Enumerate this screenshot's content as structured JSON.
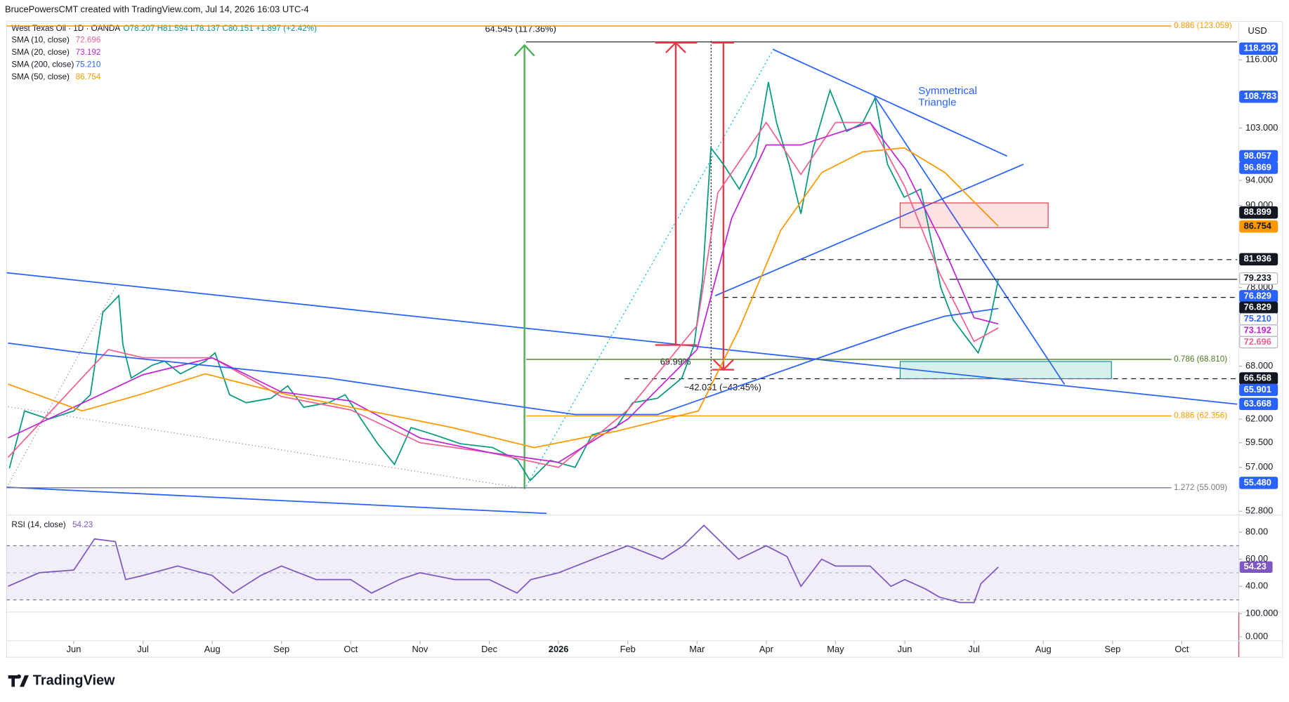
{
  "header": {
    "credit": "BrucePowersCMT created with TradingView.com, Jul 14, 2026 16:03 UTC-4",
    "currency": "USD",
    "logo": "TradingView"
  },
  "chart_data": [
    {
      "type": "line",
      "legend": {
        "symbol": "West Texas Oil · 1D · OANDA",
        "ohlc": "O78.207 H81.594 L78.137 C80.151 +1.897 (+2.42%)"
      },
      "xlim": [
        -0.97,
        16.8
      ],
      "xticks": [
        {
          "value": 0,
          "label": "Jun"
        },
        {
          "value": 1,
          "label": "Jul"
        },
        {
          "value": 2,
          "label": "Aug"
        },
        {
          "value": 3,
          "label": "Sep"
        },
        {
          "value": 4,
          "label": "Oct"
        },
        {
          "value": 5,
          "label": "Nov"
        },
        {
          "value": 6,
          "label": "Dec"
        },
        {
          "value": 7,
          "label": "2026"
        },
        {
          "value": 8,
          "label": "Feb"
        },
        {
          "value": 9,
          "label": "Mar"
        },
        {
          "value": 10,
          "label": "Apr"
        },
        {
          "value": 11,
          "label": "May"
        },
        {
          "value": 12,
          "label": "Jun"
        },
        {
          "value": 13,
          "label": "Jul"
        },
        {
          "value": 14,
          "label": "Aug"
        },
        {
          "value": 15,
          "label": "Sep"
        },
        {
          "value": 16,
          "label": "Oct"
        }
      ],
      "ylim": [
        52.6,
        123.7
      ],
      "log_scale": true,
      "grid": false,
      "yticks": [
        {
          "value": 116,
          "label": "116.000"
        },
        {
          "value": 103,
          "label": "103.000"
        },
        {
          "value": 94,
          "label": "94.000"
        },
        {
          "value": 90,
          "label": "90.000"
        },
        {
          "value": 78,
          "label": "78.000"
        },
        {
          "value": 68,
          "label": "68.000"
        },
        {
          "value": 62,
          "label": "62.000"
        },
        {
          "value": 59.5,
          "label": "59.500"
        },
        {
          "value": 57,
          "label": "57.000"
        },
        {
          "value": 52.8,
          "label": "52.800"
        }
      ],
      "series": [
        {
          "color": "#089981",
          "x": [
            -0.93,
            -0.71,
            -0.36,
            0,
            0.24,
            0.42,
            0.65,
            0.71,
            0.83,
            1.13,
            1.31,
            1.54,
            1.9,
            2.04,
            2.25,
            2.49,
            2.85,
            3.09,
            3.32,
            3.68,
            3.92,
            4.15,
            4.39,
            4.63,
            4.87,
            5.22,
            5.58,
            6.05,
            6.41,
            6.59,
            6.88,
            7.24,
            7.48,
            7.83,
            8.07,
            8.43,
            8.78,
            8.96,
            9.08,
            9.2,
            9.38,
            9.61,
            9.85,
            10.03,
            10.15,
            10.33,
            10.5,
            10.68,
            10.92,
            11.16,
            11.39,
            11.57,
            11.75,
            11.99,
            12.23,
            12.4,
            12.52,
            12.7,
            12.88,
            13.06,
            13.23,
            13.35
          ],
          "values": [
            56.9,
            62.9,
            62.0,
            62.9,
            64.7,
            74.7,
            76.9,
            70.6,
            66.6,
            68.1,
            68.6,
            67.1,
            68.6,
            69.6,
            64.7,
            63.8,
            64.3,
            65.7,
            63.3,
            63.8,
            64.7,
            62.0,
            59.4,
            57.3,
            61.1,
            60.3,
            59.4,
            59.0,
            57.7,
            55.7,
            57.7,
            57.0,
            60.3,
            61.1,
            63.8,
            64.3,
            66.6,
            70.6,
            79.1,
            99.5,
            96.7,
            92.6,
            98.1,
            111.6,
            103.9,
            96.7,
            88.7,
            99.5,
            110.0,
            102.4,
            103.9,
            108.5,
            96.7,
            91.3,
            92.6,
            83.8,
            78.0,
            73.7,
            71.6,
            69.6,
            73.7,
            79.1
          ]
        },
        {
          "name": "SMA (10, close)",
          "last_label": "72.696",
          "color": "#f06292",
          "x": [
            -0.95,
            0.5,
            1,
            2,
            3,
            4,
            5,
            6,
            7,
            8,
            9,
            9.3,
            10,
            10.5,
            11,
            11.5,
            12,
            12.5,
            13,
            13.35
          ],
          "values": [
            58,
            70,
            69,
            69,
            64.5,
            63,
            59.5,
            58.5,
            57,
            63,
            73,
            92,
            104,
            95,
            104,
            104,
            93,
            80,
            71,
            72.7
          ]
        },
        {
          "name": "SMA (20, close)",
          "last_label": "73.192",
          "color": "#c026d3",
          "x": [
            -0.95,
            1,
            2,
            3,
            4,
            5,
            6,
            7,
            8,
            9,
            9.5,
            10,
            10.5,
            11,
            11.5,
            12,
            12.5,
            13,
            13.35
          ],
          "values": [
            60,
            67,
            69,
            65,
            64,
            60,
            58.5,
            57.5,
            62,
            70,
            88,
            100,
            100,
            102,
            104,
            96,
            85,
            74,
            73.2
          ]
        },
        {
          "name": "SMA (200, close)",
          "last_label": "75.210",
          "color": "#2962ff",
          "x": [
            -0.95,
            0.12,
            1.31,
            2.49,
            3.68,
            4.87,
            6.05,
            7.24,
            8.43,
            9.61,
            10.8,
            11.99,
            12.58,
            13.35
          ],
          "values": [
            70.8,
            69.6,
            68.6,
            67.6,
            66.6,
            65.2,
            63.8,
            62.5,
            62.5,
            65.7,
            69.1,
            72.6,
            74.2,
            75.2
          ]
        },
        {
          "name": "SMA (50, close)",
          "last_label": "86.754",
          "color": "#ff9800",
          "x": [
            -0.95,
            0.12,
            0.95,
            1.9,
            3.09,
            4.27,
            5.46,
            6.65,
            7.83,
            9.02,
            9.61,
            10.21,
            10.8,
            11.39,
            11.99,
            12.58,
            13.35
          ],
          "values": [
            65.9,
            62.9,
            64.7,
            67.1,
            64.7,
            62.9,
            61.1,
            59.0,
            60.7,
            62.9,
            72.6,
            86.2,
            95.3,
            98.8,
            99.5,
            95.3,
            86.8
          ]
        }
      ],
      "levels": [
        {
          "value": 123.059,
          "label": "0.886 (123.059)",
          "color": "#ff9800"
        },
        {
          "value": 68.81,
          "label": "0.786 (68.810)",
          "color": "#4c7a1e"
        },
        {
          "value": 62.356,
          "label": "0.886 (62.356)",
          "color": "#ff9800"
        },
        {
          "value": 55.009,
          "label": "1.272 (55.009)",
          "color": "#787b86"
        }
      ],
      "price_labels": [
        {
          "value": 118.292,
          "label": "118.292",
          "color": "#2962ff",
          "text_color": "#ffffff"
        },
        {
          "value": 108.783,
          "label": "108.783",
          "color": "#2962ff",
          "text_color": "#ffffff"
        },
        {
          "value": 98.057,
          "label": "98.057",
          "color": "#2962ff",
          "text_color": "#ffffff"
        },
        {
          "value": 96.869,
          "label": "96.869",
          "color": "#2962ff",
          "text_color": "#ffffff"
        },
        {
          "value": 88.899,
          "label": "88.899",
          "color": "#131722",
          "text_color": "#ffffff"
        },
        {
          "value": 86.754,
          "label": "86.754",
          "color": "#ff9800",
          "text_color": "#131722"
        },
        {
          "value": 81.936,
          "label": "81.936",
          "color": "#131722",
          "text_color": "#ffffff"
        },
        {
          "value": 79.233,
          "label": "79.233",
          "color": "#ffffff",
          "text_color": "#131722"
        },
        {
          "value": 76.829,
          "label": "76.829",
          "color": "#2962ff",
          "text_color": "#ffffff"
        },
        {
          "value": 76.829,
          "label": "76.829",
          "color": "#131722",
          "text_color": "#ffffff"
        },
        {
          "value": 75.21,
          "label": "75.210",
          "color": "#ffffff",
          "text_color": "#2962ff"
        },
        {
          "value": 73.192,
          "label": "73.192",
          "color": "#ffffff",
          "text_color": "#c026d3"
        },
        {
          "value": 72.696,
          "label": "72.696",
          "color": "#ffffff",
          "text_color": "#f06292"
        },
        {
          "value": 66.568,
          "label": "66.568",
          "color": "#131722",
          "text_color": "#ffffff"
        },
        {
          "value": 65.901,
          "label": "65.901",
          "color": "#2962ff",
          "text_color": "#ffffff"
        },
        {
          "value": 63.668,
          "label": "63.668",
          "color": "#2962ff",
          "text_color": "#ffffff"
        },
        {
          "value": 55.48,
          "label": "55.480",
          "color": "#2962ff",
          "text_color": "#ffffff"
        }
      ],
      "annotations": {
        "gain": "64.545 (117.36%)",
        "retrace": "69.99%",
        "drop": "−42.031 (−43.45%)",
        "pattern": [
          "Symmetrical",
          "Triangle"
        ]
      }
    },
    {
      "type": "line",
      "xlim": [
        -0.97,
        16.8
      ],
      "ylim": [
        21,
        92
      ],
      "band": [
        30,
        70
      ],
      "midline": 50,
      "yticks": [
        {
          "value": 80,
          "label": "80.00"
        },
        {
          "value": 60,
          "label": "60.00"
        },
        {
          "value": 40,
          "label": "40.00"
        }
      ],
      "series": [
        {
          "name": "RSI (14, close)",
          "last_label": "54.23",
          "color": "#7e57c2",
          "x": [
            -0.95,
            -0.5,
            0,
            0.3,
            0.6,
            0.75,
            1,
            1.5,
            2,
            2.3,
            2.7,
            3,
            3.5,
            4,
            4.3,
            4.7,
            5,
            5.5,
            6,
            6.4,
            6.6,
            7,
            7.5,
            8,
            8.5,
            8.8,
            9.1,
            9.3,
            9.6,
            10,
            10.3,
            10.5,
            10.8,
            11,
            11.5,
            11.8,
            12,
            12.3,
            12.5,
            12.8,
            13,
            13.1,
            13.35
          ],
          "values": [
            40,
            50,
            52,
            75,
            73,
            45,
            48,
            55,
            48,
            35,
            48,
            55,
            45,
            45,
            35,
            45,
            50,
            45,
            45,
            35,
            45,
            50,
            60,
            70,
            60,
            70,
            85,
            75,
            60,
            70,
            62,
            40,
            60,
            55,
            55,
            40,
            45,
            38,
            32,
            28,
            28,
            42,
            54.23
          ]
        }
      ]
    },
    {
      "type": "axis",
      "ylim": [
        0,
        100
      ],
      "yticks": [
        {
          "value": 100,
          "label": "100.000"
        },
        {
          "value": 0,
          "label": "0.000"
        }
      ]
    }
  ]
}
